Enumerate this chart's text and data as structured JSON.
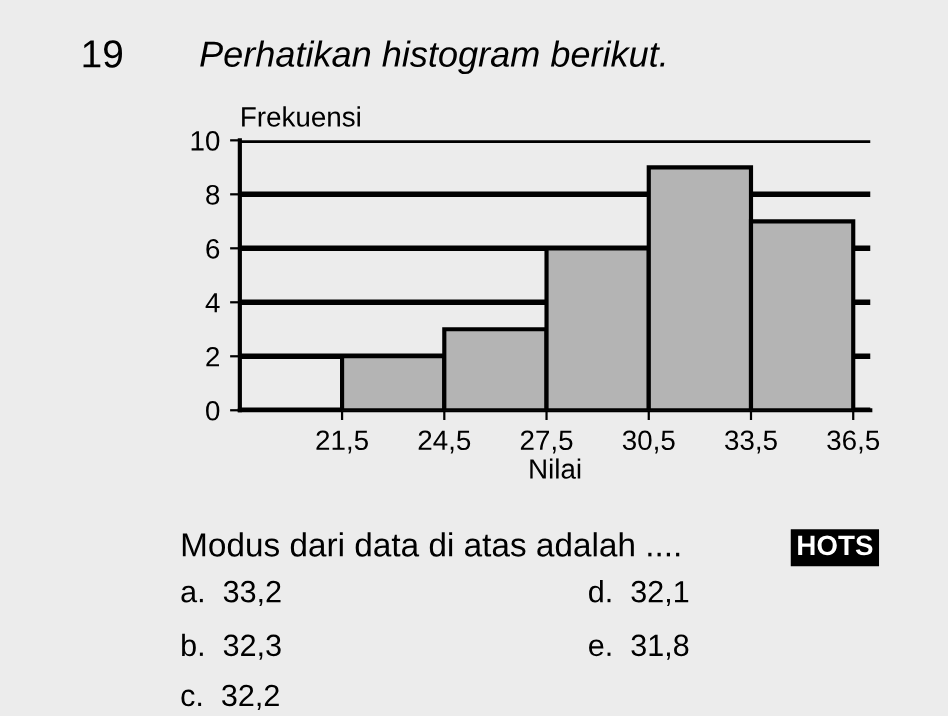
{
  "chart_data": {
    "type": "histogram",
    "title": "Perhatikan histogram berikut.",
    "ylabel": "Frekuensi",
    "xlabel": "Nilai",
    "bins": [
      21.5,
      24.5,
      27.5,
      30.5,
      33.5,
      36.5
    ],
    "values": [
      2,
      3,
      6,
      9,
      7
    ],
    "color": "#b4b4b4",
    "xlim": [
      18.5,
      37.0
    ],
    "xticks": [
      {
        "value": 21.5,
        "label": "21,5"
      },
      {
        "value": 24.5,
        "label": "24,5"
      },
      {
        "value": 27.5,
        "label": "27,5"
      },
      {
        "value": 30.5,
        "label": "30,5"
      },
      {
        "value": 33.5,
        "label": "33,5"
      },
      {
        "value": 36.5,
        "label": "36,5"
      }
    ],
    "ylim": [
      0,
      10
    ],
    "yticks": [
      0,
      2,
      4,
      6,
      8,
      10
    ],
    "grid": "y",
    "annotations": [
      "19",
      "Modus dari data di atas adalah ....",
      "HOTS",
      "a.  33,2",
      "d.  32,1",
      "b.  32,3",
      "e.  31,8",
      "c.  32,2"
    ]
  }
}
